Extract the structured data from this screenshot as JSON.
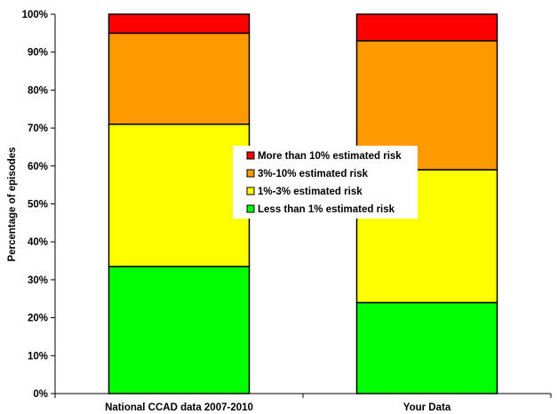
{
  "chart_data": {
    "type": "bar",
    "stacked": true,
    "categories": [
      "National CCAD data 2007-2010",
      "Your Data"
    ],
    "series": [
      {
        "name": "Less than 1% estimated risk",
        "color": "#00ff00",
        "values": [
          33.5,
          24
        ]
      },
      {
        "name": "1%-3% estimated risk",
        "color": "#ffff00",
        "values": [
          37.5,
          35
        ]
      },
      {
        "name": "3%-10% estimated risk",
        "color": "#ff9900",
        "values": [
          24,
          34
        ]
      },
      {
        "name": "More than 10% estimated risk",
        "color": "#ff0000",
        "values": [
          5,
          7
        ]
      }
    ],
    "ylabel": "Percentage of episodes",
    "ylim": [
      0,
      100
    ],
    "yticks": [
      "0%",
      "10%",
      "20%",
      "30%",
      "40%",
      "50%",
      "60%",
      "70%",
      "80%",
      "90%",
      "100%"
    ],
    "grid": false,
    "legend": {
      "placement": "center",
      "order": [
        3,
        2,
        1,
        0
      ]
    }
  }
}
